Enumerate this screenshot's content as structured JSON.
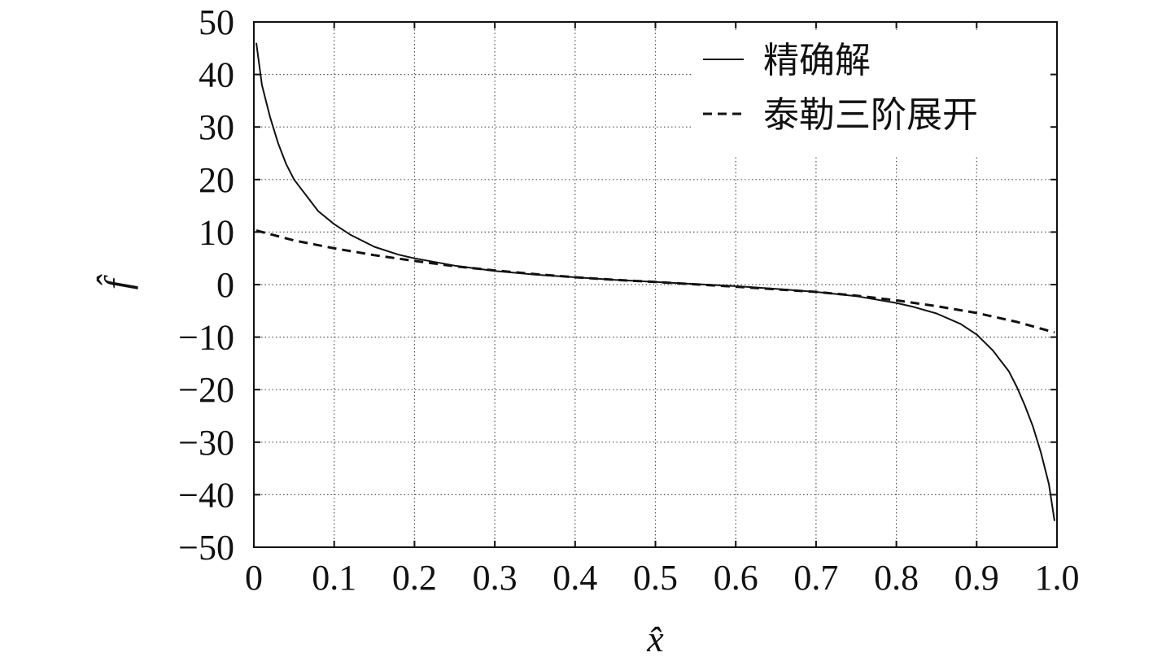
{
  "chart_data": {
    "type": "line",
    "title": "",
    "xlabel": "x̂",
    "ylabel": "f̂",
    "xlim": [
      0,
      1.0
    ],
    "ylim": [
      -50,
      50
    ],
    "grid": true,
    "legend_position": "top-right",
    "x_ticks": [
      "0",
      "0.1",
      "0.2",
      "0.3",
      "0.4",
      "0.5",
      "0.6",
      "0.7",
      "0.8",
      "0.9",
      "1.0"
    ],
    "y_ticks": [
      "50",
      "40",
      "30",
      "20",
      "10",
      "0",
      "−10",
      "−20",
      "−30",
      "−40",
      "−50"
    ],
    "series": [
      {
        "name": "精确解",
        "style": "solid",
        "color": "#111111",
        "x": [
          0.003,
          0.01,
          0.02,
          0.03,
          0.04,
          0.05,
          0.06,
          0.08,
          0.1,
          0.12,
          0.15,
          0.18,
          0.2,
          0.25,
          0.3,
          0.35,
          0.4,
          0.45,
          0.5,
          0.55,
          0.6,
          0.65,
          0.7,
          0.75,
          0.8,
          0.82,
          0.85,
          0.88,
          0.9,
          0.92,
          0.94,
          0.95,
          0.96,
          0.97,
          0.98,
          0.99,
          0.997
        ],
        "y": [
          46,
          38,
          32,
          27,
          23,
          20,
          18,
          14,
          11.5,
          9.5,
          7.2,
          5.7,
          5.0,
          3.6,
          2.6,
          1.9,
          1.4,
          0.9,
          0.5,
          0.1,
          -0.3,
          -0.8,
          -1.4,
          -2.2,
          -3.5,
          -4.2,
          -5.5,
          -7.5,
          -9.5,
          -12.5,
          -16.5,
          -19.5,
          -23,
          -27,
          -32,
          -38,
          -45
        ]
      },
      {
        "name": "泰勒三阶展开",
        "style": "dashed",
        "color": "#111111",
        "x": [
          0.003,
          0.05,
          0.1,
          0.15,
          0.2,
          0.25,
          0.3,
          0.35,
          0.4,
          0.45,
          0.5,
          0.55,
          0.6,
          0.65,
          0.7,
          0.75,
          0.8,
          0.85,
          0.9,
          0.95,
          0.997
        ],
        "y": [
          10.3,
          8.4,
          6.9,
          5.6,
          4.5,
          3.5,
          2.7,
          2.0,
          1.4,
          0.9,
          0.5,
          0.05,
          -0.4,
          -0.9,
          -1.4,
          -2.1,
          -3.0,
          -4.1,
          -5.4,
          -7.1,
          -9.1
        ]
      }
    ]
  }
}
